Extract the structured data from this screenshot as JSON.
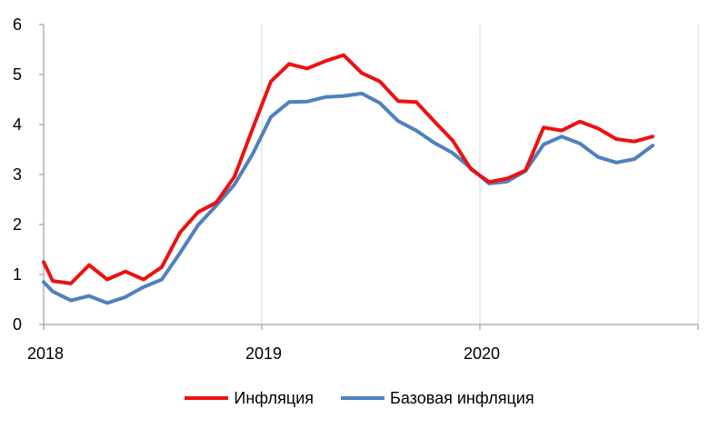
{
  "chart_data": {
    "type": "line",
    "title": "",
    "xlabel": "",
    "ylabel": "",
    "xlim": [
      2018.0,
      2021.0
    ],
    "ylim": [
      0,
      6
    ],
    "x_ticks": [
      2018,
      2019,
      2020
    ],
    "x_tick_labels": [
      "2018",
      "2019",
      "2020"
    ],
    "y_ticks": [
      0,
      1,
      2,
      3,
      4,
      5,
      6
    ],
    "y_tick_labels": [
      "0",
      "1",
      "2",
      "3",
      "4",
      "5",
      "6"
    ],
    "grid": "vertical gridlines at each year",
    "legend_position": "bottom",
    "series": [
      {
        "name": "Инфляция",
        "color": "#ee1111",
        "x": [
          2018.0,
          2018.0417,
          2018.125,
          2018.2083,
          2018.2917,
          2018.375,
          2018.4583,
          2018.5417,
          2018.625,
          2018.7083,
          2018.7917,
          2018.875,
          2018.9583,
          2019.0417,
          2019.125,
          2019.2083,
          2019.2917,
          2019.375,
          2019.4583,
          2019.5417,
          2019.625,
          2019.7083,
          2019.7917,
          2019.875,
          2019.9583,
          2020.0417,
          2020.125,
          2020.2083,
          2020.2917,
          2020.375,
          2020.4583,
          2020.5417,
          2020.625,
          2020.7083,
          2020.7917
        ],
        "values": [
          1.25,
          0.87,
          0.82,
          1.19,
          0.9,
          1.06,
          0.9,
          1.15,
          1.84,
          2.25,
          2.44,
          2.96,
          3.92,
          4.86,
          5.21,
          5.12,
          5.27,
          5.39,
          5.03,
          4.86,
          4.47,
          4.45,
          4.06,
          3.68,
          3.11,
          2.85,
          2.92,
          3.08,
          3.94,
          3.88,
          4.06,
          3.92,
          3.71,
          3.66,
          3.76
        ]
      },
      {
        "name": "Базовая инфляция",
        "color": "#4f81bd",
        "x": [
          2018.0,
          2018.0417,
          2018.125,
          2018.2083,
          2018.2917,
          2018.375,
          2018.4583,
          2018.5417,
          2018.625,
          2018.7083,
          2018.7917,
          2018.875,
          2018.9583,
          2019.0417,
          2019.125,
          2019.2083,
          2019.2917,
          2019.375,
          2019.4583,
          2019.5417,
          2019.625,
          2019.7083,
          2019.7917,
          2019.875,
          2019.9583,
          2020.0417,
          2020.125,
          2020.2083,
          2020.2917,
          2020.375,
          2020.4583,
          2020.5417,
          2020.625,
          2020.7083,
          2020.7917
        ],
        "values": [
          0.85,
          0.66,
          0.48,
          0.57,
          0.43,
          0.55,
          0.75,
          0.9,
          1.43,
          1.99,
          2.38,
          2.8,
          3.41,
          4.15,
          4.45,
          4.46,
          4.55,
          4.57,
          4.62,
          4.43,
          4.07,
          3.88,
          3.63,
          3.43,
          3.13,
          2.82,
          2.86,
          3.07,
          3.6,
          3.76,
          3.62,
          3.35,
          3.24,
          3.31,
          3.58
        ]
      }
    ]
  }
}
